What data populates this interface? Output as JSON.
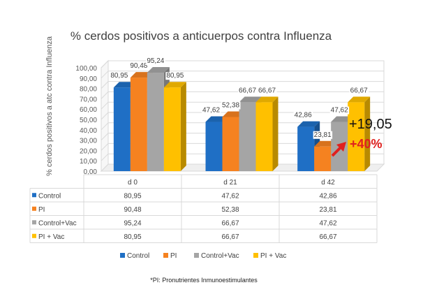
{
  "chart_data": {
    "type": "bar",
    "title": "% cerdos positivos a anticuerpos contra Influenza",
    "ylabel": "% cerdos positivos a atc contra Influenza",
    "ylim": [
      0,
      100
    ],
    "yticks": [
      "0,00",
      "10,00",
      "20,00",
      "30,00",
      "40,00",
      "50,00",
      "60,00",
      "70,00",
      "80,00",
      "90,00",
      "100,00"
    ],
    "categories": [
      "d 0",
      "d 21",
      "d 42"
    ],
    "series": [
      {
        "name": "Control",
        "color": "#1f6fc5",
        "values": [
          80.95,
          47.62,
          42.86
        ],
        "labels": [
          "80,95",
          "47,62",
          "42,86"
        ]
      },
      {
        "name": "PI",
        "color": "#f58220",
        "values": [
          90.48,
          52.38,
          23.81
        ],
        "labels": [
          "90,48",
          "52,38",
          "23,81"
        ]
      },
      {
        "name": "Control+Vac",
        "color": "#a5a5a5",
        "values": [
          95.24,
          66.67,
          47.62
        ],
        "labels": [
          "95,24",
          "66,67",
          "47,62"
        ]
      },
      {
        "name": "PI + Vac",
        "color": "#ffc000",
        "values": [
          80.95,
          66.67,
          66.67
        ],
        "labels": [
          "80,95",
          "66,67",
          "66,67"
        ]
      }
    ],
    "legend_position": "bottom",
    "grid": true,
    "annotations": [
      {
        "text": "+19,05",
        "color": "#111111"
      },
      {
        "text": "+40%",
        "color": "#e0201e"
      }
    ]
  },
  "footnote": "*PI: Pronutrientes Inmunoestimulantes"
}
